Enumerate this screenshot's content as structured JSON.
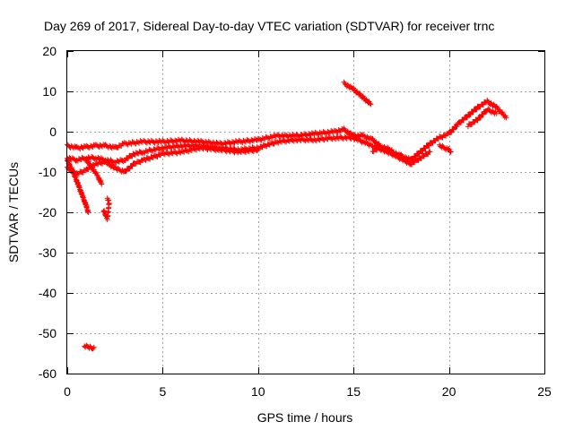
{
  "chart_data": {
    "type": "scatter",
    "title": "Day 269 of 2017, Sidereal Day-to-day VTEC variation (SDTVAR) for receiver trnc",
    "xlabel": "GPS time / hours",
    "ylabel": "SDTVAR / TECUs",
    "xlim": [
      0,
      25
    ],
    "ylim": [
      -60,
      20
    ],
    "xticks": [
      0,
      5,
      10,
      15,
      20,
      25
    ],
    "yticks": [
      -60,
      -50,
      -40,
      -30,
      -20,
      -10,
      0,
      10,
      20
    ],
    "grid": true,
    "marker": "+",
    "series": [
      {
        "name": "SDTVAR",
        "color": "#ff0000",
        "tracks": [
          [
            [
              0,
              -3.5
            ],
            [
              0.5,
              -4
            ],
            [
              1,
              -3.8
            ],
            [
              1.5,
              -3.5
            ],
            [
              2,
              -3.5
            ],
            [
              2.5,
              -4
            ],
            [
              3,
              -3
            ],
            [
              4,
              -2.5
            ],
            [
              5,
              -2.5
            ],
            [
              6,
              -2.2
            ],
            [
              7,
              -2.5
            ],
            [
              8,
              -3
            ],
            [
              9,
              -2.5
            ],
            [
              10,
              -2
            ],
            [
              11,
              -1
            ],
            [
              12,
              -1
            ],
            [
              13,
              -0.5
            ],
            [
              14,
              0
            ],
            [
              14.5,
              0.5
            ],
            [
              15,
              -1
            ],
            [
              15.5,
              -1
            ],
            [
              16,
              -2
            ],
            [
              16.5,
              -4
            ],
            [
              17,
              -5
            ],
            [
              17.5,
              -6
            ],
            [
              18,
              -7
            ],
            [
              18.5,
              -5
            ],
            [
              19,
              -3
            ],
            [
              19.5,
              -1.5
            ],
            [
              20,
              -0.5
            ],
            [
              20.5,
              2
            ],
            [
              21,
              4
            ],
            [
              21.5,
              6
            ],
            [
              22,
              7.5
            ],
            [
              22.5,
              6
            ],
            [
              23,
              3.5
            ]
          ],
          [
            [
              0,
              -6.5
            ],
            [
              0.5,
              -7
            ],
            [
              1,
              -6.5
            ],
            [
              1.5,
              -6.5
            ],
            [
              2,
              -7
            ],
            [
              2.5,
              -7.5
            ],
            [
              3,
              -7
            ],
            [
              3.5,
              -5.5
            ],
            [
              4,
              -5
            ],
            [
              5,
              -4
            ],
            [
              6,
              -3.5
            ],
            [
              7,
              -3.5
            ],
            [
              8,
              -4
            ],
            [
              9,
              -4.5
            ],
            [
              10,
              -4
            ],
            [
              11,
              -2.5
            ],
            [
              12,
              -2
            ],
            [
              13,
              -2
            ],
            [
              14,
              -1.5
            ],
            [
              15,
              -1.5
            ],
            [
              16,
              -3.5
            ],
            [
              17,
              -5.5
            ],
            [
              18,
              -8
            ],
            [
              18.5,
              -6.5
            ],
            [
              19,
              -5
            ]
          ],
          [
            [
              0,
              -9
            ],
            [
              0.5,
              -10.5
            ],
            [
              1,
              -9.5
            ],
            [
              1.5,
              -8
            ],
            [
              2,
              -7.5
            ],
            [
              2.5,
              -9
            ],
            [
              3,
              -10
            ],
            [
              3.5,
              -8
            ],
            [
              4,
              -7
            ],
            [
              5,
              -5.5
            ],
            [
              6,
              -5
            ],
            [
              7,
              -4
            ],
            [
              8,
              -4.5
            ],
            [
              9,
              -5
            ],
            [
              10,
              -4.5
            ]
          ],
          [
            [
              0,
              -7
            ],
            [
              0.2,
              -9
            ],
            [
              0.4,
              -11
            ],
            [
              0.6,
              -13.5
            ],
            [
              0.8,
              -16
            ],
            [
              1,
              -18.5
            ],
            [
              1.1,
              -20
            ]
          ],
          [
            [
              1,
              -7
            ],
            [
              1.3,
              -9
            ],
            [
              1.6,
              -11
            ],
            [
              1.8,
              -13
            ]
          ],
          [
            [
              1.9,
              -19.5
            ],
            [
              2,
              -20.5
            ],
            [
              2.1,
              -21.5
            ],
            [
              2.2,
              -17.5
            ],
            [
              2.1,
              -16.5
            ]
          ],
          [
            [
              0.9,
              -53.2
            ],
            [
              1.1,
              -53.4
            ],
            [
              1.3,
              -53.8
            ],
            [
              1.4,
              -53.5
            ]
          ],
          [
            [
              14.5,
              12
            ],
            [
              15,
              10.5
            ],
            [
              15.5,
              8.5
            ],
            [
              15.9,
              6.8
            ]
          ],
          [
            [
              16,
              -4.8
            ],
            [
              16.5,
              -3.8
            ],
            [
              17,
              -4.5
            ]
          ],
          [
            [
              19.5,
              -3.5
            ],
            [
              20,
              -4.5
            ],
            [
              20.1,
              -5
            ]
          ],
          [
            [
              21,
              1.5
            ],
            [
              21.5,
              3
            ],
            [
              22,
              5.5
            ],
            [
              22.5,
              4.5
            ]
          ]
        ]
      }
    ]
  }
}
